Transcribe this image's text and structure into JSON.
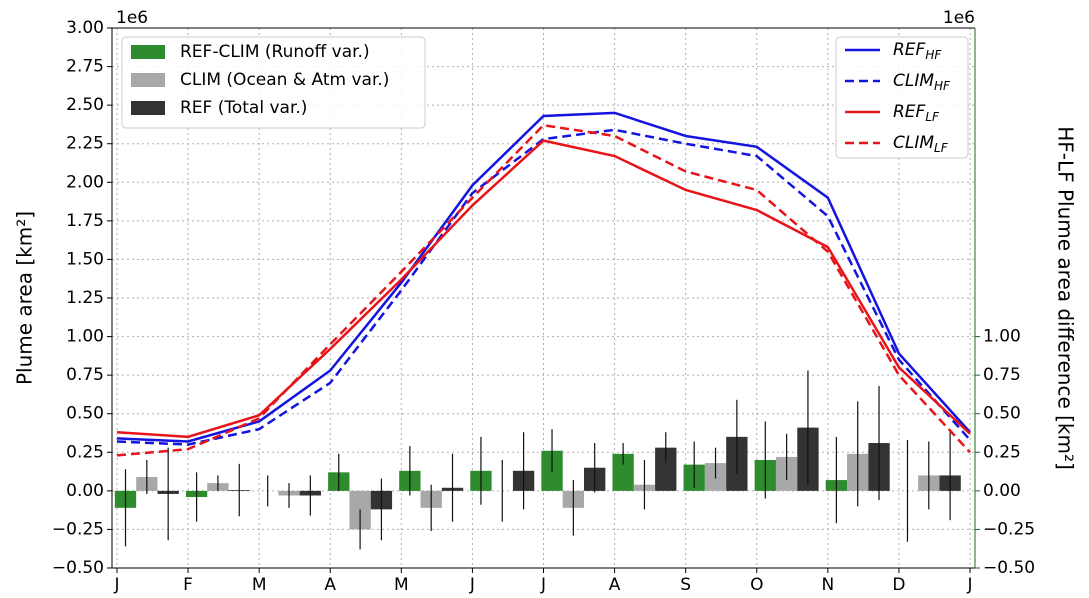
{
  "chart_data": {
    "type": "combo",
    "ylabel": "Plume area [km²]",
    "y2label": "HF-LF Plume area difference [km²]",
    "offset_label": "1e6",
    "y2_offset_label": "1e6",
    "categories": [
      "J",
      "F",
      "M",
      "A",
      "M",
      "J",
      "J",
      "A",
      "S",
      "O",
      "N",
      "D",
      "J"
    ],
    "xlim": [
      -0.07,
      12.07
    ],
    "ylim": [
      -0.5,
      3.0
    ],
    "yticks": [
      {
        "value": -0.5,
        "label": "−0.50"
      },
      {
        "value": -0.25,
        "label": "−0.25"
      },
      {
        "value": 0,
        "label": "0.00"
      },
      {
        "value": 0.25,
        "label": "0.25"
      },
      {
        "value": 0.5,
        "label": "0.50"
      },
      {
        "value": 0.75,
        "label": "0.75"
      },
      {
        "value": 1,
        "label": "1.00"
      },
      {
        "value": 1.25,
        "label": "1.25"
      },
      {
        "value": 1.5,
        "label": "1.50"
      },
      {
        "value": 1.75,
        "label": "1.75"
      },
      {
        "value": 2,
        "label": "2.00"
      },
      {
        "value": 2.25,
        "label": "2.25"
      },
      {
        "value": 2.5,
        "label": "2.50"
      },
      {
        "value": 2.75,
        "label": "2.75"
      },
      {
        "value": 3,
        "label": "3.00"
      }
    ],
    "y2lim": [
      -0.5,
      3.0
    ],
    "y2ticks": [
      {
        "value": -0.5,
        "label": "−0.50"
      },
      {
        "value": -0.25,
        "label": "−0.25"
      },
      {
        "value": 0,
        "label": "0.00"
      },
      {
        "value": 0.25,
        "label": "0.25"
      },
      {
        "value": 0.5,
        "label": "0.50"
      },
      {
        "value": 0.75,
        "label": "0.75"
      },
      {
        "value": 1,
        "label": "1.00"
      }
    ],
    "y2color": "#1a6b1a",
    "grid": true,
    "bar_series": [
      {
        "name": "REF-CLIM (Runoff var.)",
        "color": "#2e8b2e",
        "axis": "y2",
        "values": [
          -0.11,
          -0.04,
          0.0,
          0.12,
          0.13,
          0.13,
          0.26,
          0.24,
          0.17,
          0.2,
          0.07,
          0.0
        ],
        "errors": [
          0.25,
          0.16,
          0.1,
          0.12,
          0.16,
          0.22,
          0.14,
          0.07,
          0.15,
          0.25,
          0.28,
          0.33
        ]
      },
      {
        "name": "CLIM (Ocean & Atm var.)",
        "color": "#a8a8a8",
        "axis": "y2",
        "values": [
          0.09,
          0.05,
          -0.03,
          -0.25,
          -0.11,
          0.0,
          -0.11,
          0.04,
          0.18,
          0.22,
          0.24,
          0.1
        ],
        "errors": [
          0.11,
          0.05,
          0.08,
          0.13,
          0.15,
          0.2,
          0.18,
          0.16,
          0.1,
          0.15,
          0.34,
          0.22
        ]
      },
      {
        "name": "REF (Total var.)",
        "color": "#333333",
        "axis": "y2",
        "values": [
          -0.02,
          0.005,
          -0.03,
          -0.12,
          0.02,
          0.13,
          0.15,
          0.28,
          0.35,
          0.41,
          0.31,
          0.1
        ],
        "errors": [
          0.3,
          0.17,
          0.13,
          0.2,
          0.22,
          0.25,
          0.16,
          0.1,
          0.24,
          0.37,
          0.37,
          0.29
        ]
      }
    ],
    "line_series": [
      {
        "name": "REF",
        "name_sub": "HF",
        "color": "#1414e0",
        "dashed": false,
        "values": [
          0.34,
          0.32,
          0.45,
          0.78,
          1.35,
          1.98,
          2.43,
          2.45,
          2.3,
          2.23,
          1.9,
          0.89,
          0.38
        ]
      },
      {
        "name": "CLIM",
        "name_sub": "HF",
        "color": "#1414e0",
        "dashed": true,
        "values": [
          0.32,
          0.3,
          0.4,
          0.7,
          1.3,
          1.93,
          2.28,
          2.34,
          2.25,
          2.17,
          1.78,
          0.85,
          0.33
        ]
      },
      {
        "name": "REF",
        "name_sub": "LF",
        "color": "#e8141a",
        "dashed": false,
        "values": [
          0.38,
          0.35,
          0.49,
          0.92,
          1.37,
          1.85,
          2.27,
          2.17,
          1.95,
          1.82,
          1.58,
          0.8,
          0.37
        ]
      },
      {
        "name": "CLIM",
        "name_sub": "LF",
        "color": "#e8141a",
        "dashed": true,
        "values": [
          0.23,
          0.27,
          0.47,
          0.95,
          1.42,
          1.9,
          2.37,
          2.3,
          2.07,
          1.95,
          1.55,
          0.75,
          0.25
        ]
      }
    ]
  }
}
